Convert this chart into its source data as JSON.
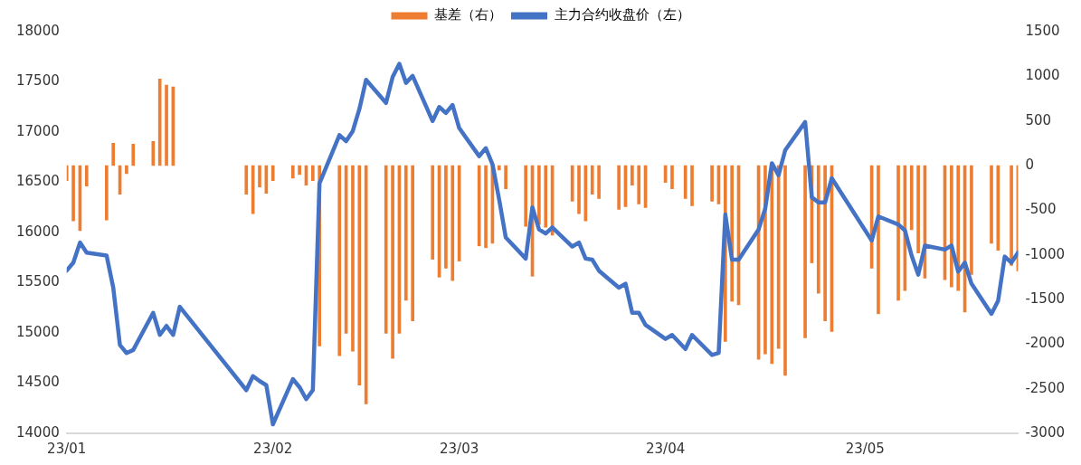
{
  "chart_data": {
    "type": "bar",
    "legend": "top",
    "grid": false,
    "marker": "none",
    "line_style": "solid",
    "x": [
      "--01-03",
      "--01-04",
      "--01-05",
      "--01-06",
      "--01-09",
      "--01-10",
      "--01-11",
      "--01-12",
      "--01-13",
      "--01-16",
      "--01-17",
      "--01-18",
      "--01-19",
      "--01-20",
      "--01-30",
      "--01-31",
      "--02-01",
      "--02-02",
      "--02-03",
      "--02-06",
      "--02-07",
      "--02-08",
      "--02-09",
      "--02-10",
      "--02-13",
      "--02-14",
      "--02-15",
      "--02-16",
      "--02-17",
      "--02-20",
      "--02-21",
      "--02-22",
      "--02-23",
      "--02-24",
      "--02-27",
      "--02-28",
      "--03-01",
      "--03-02",
      "--03-03",
      "--03-06",
      "--03-07",
      "--03-08",
      "--03-09",
      "--03-10",
      "--03-13",
      "--03-14",
      "--03-15",
      "--03-16",
      "--03-17",
      "--03-20",
      "--03-21",
      "--03-22",
      "--03-23",
      "--03-24",
      "--03-27",
      "--03-28",
      "--03-29",
      "--03-30",
      "--03-31",
      "--04-03",
      "--04-04",
      "--04-06",
      "--04-07",
      "--04-10",
      "--04-11",
      "--04-12",
      "--04-13",
      "--04-14",
      "--04-17",
      "--04-18",
      "--04-19",
      "--04-20",
      "--04-21",
      "--04-24",
      "--04-25",
      "--04-26",
      "--04-27",
      "--04-28",
      "--05-04",
      "--05-05",
      "--05-08",
      "--05-09",
      "--05-10",
      "--05-11",
      "--05-12",
      "--05-15",
      "--05-16",
      "--05-17",
      "--05-18",
      "--05-19",
      "--05-22",
      "--05-23",
      "--05-24",
      "--05-25",
      "--05-26"
    ],
    "xlim": [
      "--01-03",
      "--05-26"
    ],
    "xticks": [
      {
        "value": "--01-03",
        "label": "23/01"
      },
      {
        "value": "--02-03",
        "label": "23/02"
      },
      {
        "value": "--03-03",
        "label": "23/03"
      },
      {
        "value": "--04-03",
        "label": "23/04"
      },
      {
        "value": "--05-03",
        "label": "23/05"
      }
    ],
    "ylim": [
      14000,
      18000
    ],
    "yticks": [
      14000,
      14500,
      15000,
      15500,
      16000,
      16500,
      17000,
      17500,
      18000
    ],
    "y2lim": [
      -3000,
      1500
    ],
    "y2ticks": [
      -3000,
      -2500,
      -2000,
      -1500,
      -1000,
      -500,
      0,
      500,
      1000,
      1500
    ],
    "series": [
      {
        "name": "基差（右）",
        "axis": "y2",
        "color": "#ed7d31",
        "values": [
          -170,
          -620,
          -730,
          -230,
          -610,
          250,
          -320,
          -90,
          240,
          270,
          970,
          900,
          880,
          null,
          -320,
          -540,
          -240,
          -310,
          -170,
          -140,
          -100,
          -220,
          -170,
          -2020,
          -2130,
          -1880,
          -2080,
          -2460,
          -2670,
          -1880,
          -2160,
          -1880,
          -1510,
          -1740,
          -1050,
          -1250,
          -1150,
          -1290,
          -1070,
          -900,
          -920,
          -870,
          -50,
          -260,
          -680,
          -1240,
          -660,
          -690,
          -780,
          -400,
          -540,
          -620,
          -320,
          -370,
          -490,
          -460,
          -220,
          -430,
          -470,
          -190,
          -260,
          -370,
          -450,
          -400,
          -430,
          -1970,
          -1520,
          -1560,
          -2170,
          -2110,
          -2220,
          -2050,
          -2350,
          -1930,
          -1090,
          -1430,
          -1740,
          -1860,
          -1150,
          -1660,
          -1510,
          -1400,
          -720,
          -980,
          -1260,
          -1280,
          -1360,
          -1400,
          -1640,
          -1220,
          -870,
          -950,
          null,
          -1120,
          -1180
        ]
      },
      {
        "name": "主力合约收盘价（左）",
        "type": "line",
        "axis": "y",
        "color": "#4472c4",
        "values": [
          15620,
          15700,
          15900,
          15800,
          15770,
          15450,
          14880,
          14800,
          14830,
          15200,
          14980,
          15070,
          14980,
          15260,
          14430,
          14570,
          14520,
          14480,
          14090,
          14540,
          14460,
          14340,
          14430,
          16490,
          16970,
          16910,
          17010,
          17230,
          17520,
          17290,
          17550,
          17680,
          17490,
          17560,
          17110,
          17250,
          17190,
          17270,
          17040,
          16760,
          16840,
          16680,
          16330,
          15950,
          15740,
          16250,
          16030,
          15990,
          16050,
          15860,
          15900,
          15740,
          15730,
          15620,
          15450,
          15490,
          15200,
          15200,
          15080,
          14940,
          14980,
          14840,
          14980,
          14780,
          14800,
          16180,
          15730,
          15730,
          16030,
          16240,
          16690,
          16570,
          16820,
          17100,
          16350,
          16300,
          16300,
          16540,
          15920,
          16160,
          16080,
          16020,
          15770,
          15580,
          15870,
          15830,
          15870,
          15610,
          15700,
          15490,
          15190,
          15320,
          15760,
          15700,
          15800
        ]
      }
    ]
  }
}
